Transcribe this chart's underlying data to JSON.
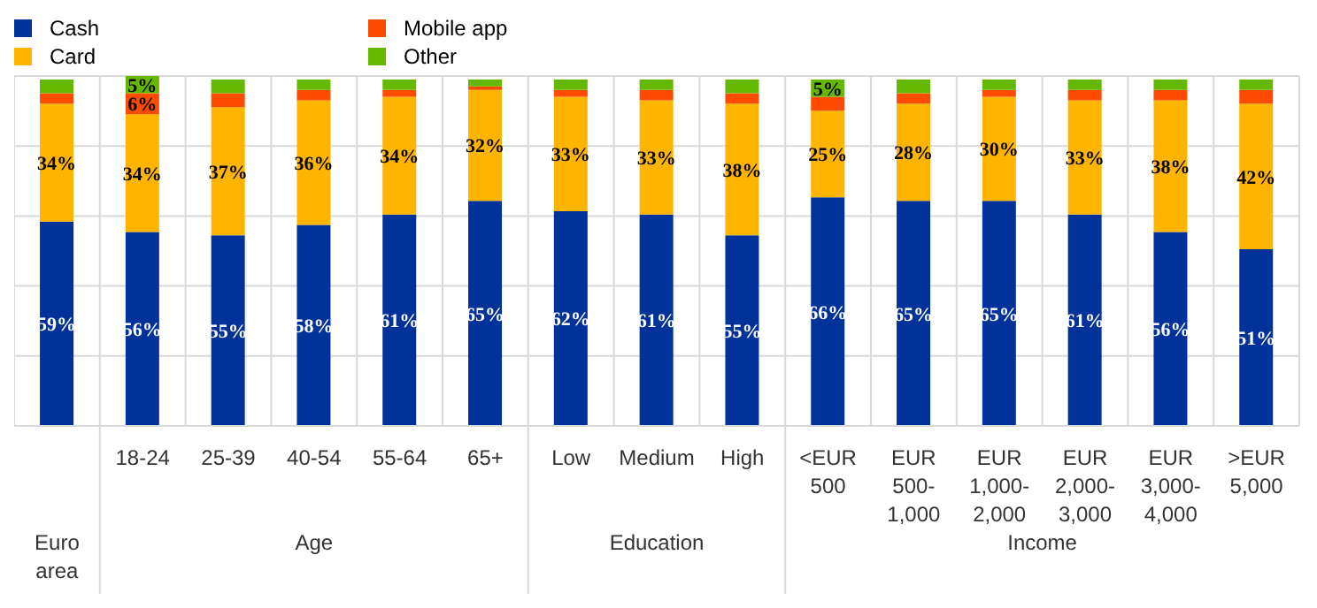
{
  "chart_data": {
    "type": "bar",
    "stacked": true,
    "categories": [
      null,
      "18-24",
      "25-39",
      "40-54",
      "55-64",
      "65+",
      "Low",
      "Medium",
      "High",
      "<EUR 500",
      "EUR 500-1,000",
      "EUR 1,000-2,000",
      "EUR 2,000-3,000",
      "EUR 3,000-4,000",
      ">EUR 5,000"
    ],
    "series": [
      {
        "name": "Cash",
        "color": "#003299",
        "values": [
          59,
          56,
          55,
          58,
          61,
          65,
          62,
          61,
          55,
          66,
          65,
          65,
          61,
          56,
          51
        ],
        "value_labels": [
          "59%",
          "56%",
          "55%",
          "58%",
          "61%",
          "65%",
          "62%",
          "61%",
          "55%",
          "66%",
          "65%",
          "65%",
          "61%",
          "56%",
          "51%"
        ]
      },
      {
        "name": "Card",
        "color": "#ffb400",
        "values": [
          34,
          34,
          37,
          36,
          34,
          32,
          33,
          33,
          38,
          25,
          28,
          30,
          33,
          38,
          42
        ],
        "value_labels": [
          "34%",
          "34%",
          "37%",
          "36%",
          "34%",
          "32%",
          "33%",
          "33%",
          "38%",
          "25%",
          "28%",
          "30%",
          "33%",
          "38%",
          "42%"
        ]
      },
      {
        "name": "Mobile app",
        "color": "#ff4b00",
        "values": [
          3,
          6,
          4,
          3,
          2,
          1,
          2,
          3,
          3,
          4,
          3,
          2,
          3,
          3,
          4
        ],
        "value_labels": [
          null,
          "6%",
          null,
          null,
          null,
          null,
          null,
          null,
          null,
          null,
          null,
          null,
          null,
          null,
          null
        ]
      },
      {
        "name": "Other",
        "color": "#65b800",
        "values": [
          4,
          5,
          4,
          3,
          3,
          2,
          3,
          3,
          4,
          5,
          4,
          3,
          3,
          3,
          3
        ],
        "value_labels": [
          null,
          "5%",
          null,
          null,
          null,
          null,
          null,
          null,
          null,
          "5%",
          null,
          null,
          null,
          null,
          null
        ]
      }
    ],
    "ylim": [
      0,
      101
    ],
    "tick_labels": "x",
    "grid": true,
    "legend": "top left",
    "annotations": [
      "Euro area",
      "Age",
      "Education",
      "Income"
    ]
  }
}
